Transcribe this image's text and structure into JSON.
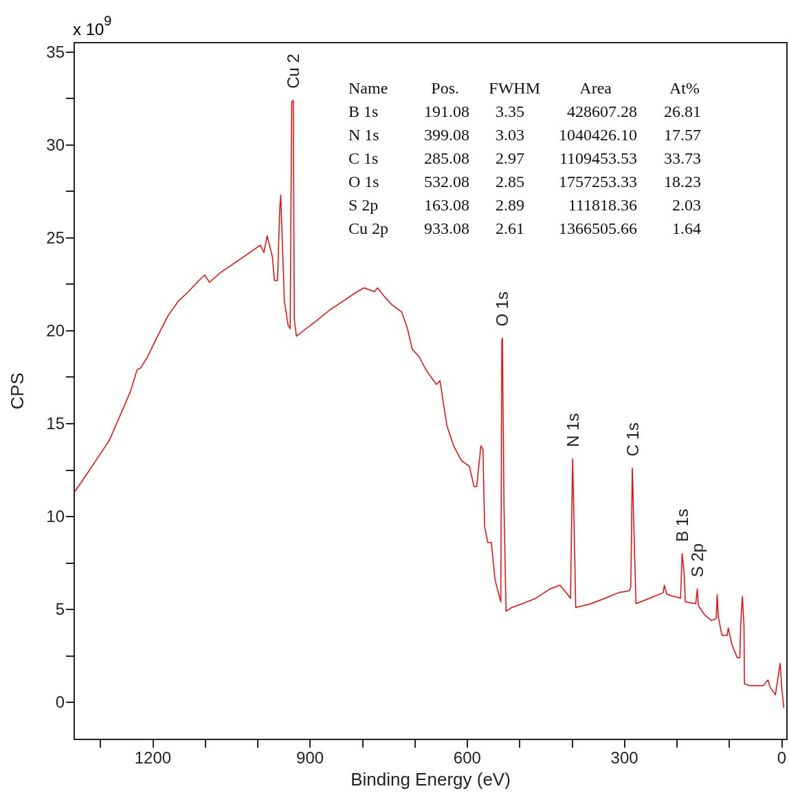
{
  "chart_data": {
    "type": "line",
    "xlabel": "Binding Energy (eV)",
    "ylabel": "CPS",
    "x": [
      1350,
      1335,
      1309,
      1283,
      1263,
      1243,
      1230,
      1223,
      1210,
      1191,
      1171,
      1151,
      1132,
      1112,
      1101,
      1092,
      1072,
      1046,
      1020,
      995,
      988,
      982,
      972,
      968,
      962,
      958,
      956,
      953,
      949,
      942,
      938,
      935,
      932,
      930,
      926,
      908,
      889,
      863,
      836,
      810,
      797,
      777,
      771,
      760,
      744,
      725,
      714,
      705,
      692,
      679,
      659,
      652,
      646,
      639,
      626,
      611,
      596,
      587,
      582,
      574,
      570,
      567,
      561,
      554,
      547,
      538,
      536,
      534,
      533,
      530,
      526,
      515,
      495,
      469,
      442,
      423,
      403,
      399,
      396,
      393,
      364,
      337,
      311,
      291,
      288,
      285,
      282,
      278,
      252,
      226,
      224,
      219,
      193,
      190,
      186,
      184,
      164,
      161,
      159,
      147,
      134,
      125,
      123,
      121,
      114,
      104,
      102,
      95,
      85,
      80,
      78,
      75,
      72,
      71,
      62,
      35,
      26,
      22,
      12,
      3,
      0,
      -4
    ],
    "series": [
      {
        "color": "#ff0000",
        "values": [
          11.3,
          11.9,
          13.0,
          14.1,
          15.4,
          16.7,
          17.9,
          18.0,
          18.6,
          19.7,
          20.8,
          21.6,
          22.1,
          22.7,
          23.0,
          22.6,
          23.1,
          23.6,
          24.1,
          24.6,
          24.2,
          25.1,
          24.0,
          22.7,
          22.7,
          26.4,
          27.3,
          24.9,
          21.6,
          20.3,
          20.1,
          32.3,
          32.4,
          20.6,
          19.7,
          20.1,
          20.5,
          21.1,
          21.6,
          22.1,
          22.3,
          22.1,
          22.3,
          21.9,
          21.4,
          21.0,
          20.1,
          19.0,
          18.6,
          17.9,
          17.1,
          17.3,
          16.2,
          14.9,
          13.8,
          13.0,
          12.7,
          11.6,
          11.6,
          13.8,
          13.6,
          9.5,
          8.6,
          8.6,
          6.6,
          5.6,
          5.4,
          19.5,
          19.6,
          10.8,
          4.9,
          5.1,
          5.3,
          5.6,
          6.1,
          6.3,
          5.6,
          13.1,
          9.3,
          5.1,
          5.3,
          5.6,
          5.9,
          6.0,
          6.2,
          12.6,
          9.3,
          5.3,
          5.6,
          5.9,
          6.3,
          5.8,
          5.6,
          8.0,
          6.9,
          5.4,
          5.3,
          6.1,
          5.2,
          4.7,
          4.4,
          4.5,
          5.8,
          4.6,
          3.6,
          3.6,
          4.0,
          3.1,
          2.4,
          2.4,
          4.3,
          5.7,
          4.1,
          1.0,
          0.9,
          0.9,
          1.2,
          0.8,
          0.4,
          2.1,
          0.8,
          -0.3
        ]
      }
    ],
    "xlim": [
      1350,
      -10
    ],
    "xticks": [
      {
        "value": 1300,
        "label": null
      },
      1200,
      {
        "value": 1100,
        "label": null
      },
      {
        "value": 1000,
        "label": null
      },
      900,
      {
        "value": 800,
        "label": null
      },
      {
        "value": 700,
        "label": null
      },
      600,
      {
        "value": 500,
        "label": null
      },
      {
        "value": 400,
        "label": null
      },
      300,
      {
        "value": 200,
        "label": null
      },
      {
        "value": 100,
        "label": null
      },
      0
    ],
    "ylim": [
      -2,
      35.5
    ],
    "yticks": [
      0,
      {
        "value": 2.5,
        "label": null
      },
      5,
      {
        "value": 7.5,
        "label": null
      },
      10,
      {
        "value": 12.5,
        "label": null
      },
      15,
      {
        "value": 17.5,
        "label": null
      },
      20,
      {
        "value": 22.5,
        "label": null
      },
      25,
      {
        "value": 27.5,
        "label": null
      },
      30,
      {
        "value": 32.5,
        "label": null
      },
      35
    ],
    "marker": "none",
    "line_style": "solid",
    "annotations": [
      "x 10$^{9}$",
      {
        "text": "Cu 2",
        "x": 932,
        "y": 32.4
      },
      {
        "text": "O 1s",
        "x": 533,
        "y": 19.6
      },
      {
        "text": "N 1s",
        "x": 399,
        "y": 13.1
      },
      {
        "text": "C 1s",
        "x": 285,
        "y": 12.6
      },
      {
        "text": "B 1s",
        "x": 190,
        "y": 8.0
      },
      {
        "text": "S 2p",
        "x": 161,
        "y": 6.1
      },
      "Name",
      "Pos.",
      "FWHM",
      "Area",
      "At%",
      "B 1s",
      "191.08",
      "3.35",
      "428607.28",
      "26.81",
      "N 1s",
      "399.08",
      "3.03",
      "1040426.10",
      "17.57",
      "C 1s",
      "285.08",
      "2.97",
      "1109453.53",
      "33.73",
      "O 1s",
      "532.08",
      "2.85",
      "1757253.33",
      "18.23",
      "S 2p",
      "163.08",
      "2.89",
      "111818.36",
      "2.03",
      "Cu 2p",
      "933.08",
      "2.61",
      "1366505.66",
      "1.64"
    ]
  }
}
